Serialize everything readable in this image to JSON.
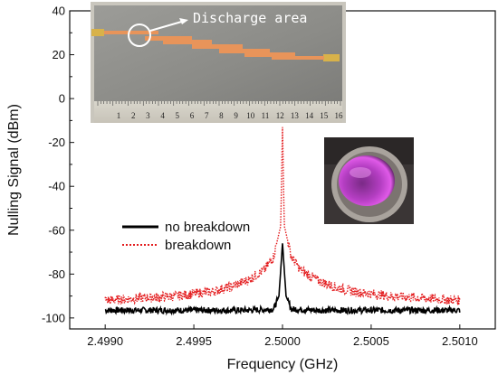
{
  "chart_data": {
    "type": "line",
    "xlabel": "Frequency (GHz)",
    "ylabel": "Nulling Signal (dBm)",
    "xlim": [
      2.4988,
      2.5012
    ],
    "ylim": [
      -105,
      40
    ],
    "x_ticks": [
      2.499,
      2.4995,
      2.5,
      2.5005,
      2.501
    ],
    "x_tick_labels": [
      "2.4990",
      "2.4995",
      "2.5000",
      "2.5005",
      "2.5010"
    ],
    "y_ticks": [
      -100,
      -80,
      -60,
      -40,
      -20,
      0,
      20,
      40
    ],
    "y_tick_labels": [
      "-100",
      "-80",
      "-60",
      "-40",
      "-20",
      "0",
      "20",
      "40"
    ],
    "grid": false,
    "legend_position": "center-left",
    "series": [
      {
        "name": "no breakdown",
        "color": "#000000",
        "style": "solid",
        "x": [
          2.499,
          2.4992,
          2.4994,
          2.4996,
          2.4998,
          2.49995,
          2.49998,
          2.5,
          2.50002,
          2.50005,
          2.5002,
          2.5004,
          2.5006,
          2.5008,
          2.501
        ],
        "y": [
          -96.5,
          -96.5,
          -96.5,
          -96.5,
          -96.5,
          -96,
          -90,
          -66,
          -90,
          -96,
          -96.5,
          -96.5,
          -96.5,
          -96.5,
          -96.5
        ]
      },
      {
        "name": "breakdown",
        "color": "#e31a1c",
        "style": "dotted",
        "x": [
          2.499,
          2.4992,
          2.4994,
          2.4996,
          2.4997,
          2.4998,
          2.4999,
          2.49995,
          2.49999,
          2.5,
          2.50001,
          2.50005,
          2.5001,
          2.5002,
          2.5003,
          2.5004,
          2.5006,
          2.5008,
          2.501
        ],
        "y": [
          -92,
          -91,
          -90,
          -88,
          -86,
          -83,
          -78,
          -72,
          -58,
          -13,
          -58,
          -72,
          -78,
          -83,
          -86,
          -88,
          -90,
          -91,
          -92
        ]
      }
    ]
  },
  "insets": {
    "circuit_photo": {
      "annotation": "Discharge area",
      "ruler_numbers": [
        "1",
        "2",
        "3",
        "4",
        "5",
        "6",
        "7",
        "8",
        "9",
        "10",
        "11",
        "12",
        "13",
        "14",
        "15",
        "16"
      ],
      "board_color": "#8f8f8b",
      "trace_color": "#e8945a"
    },
    "plasma_photo": {
      "glow_color": "#c23ccf",
      "ring_color": "#a9a39d"
    }
  },
  "colors": {
    "axis": "#111111",
    "no_breakdown": "#000000",
    "breakdown": "#e31a1c"
  }
}
